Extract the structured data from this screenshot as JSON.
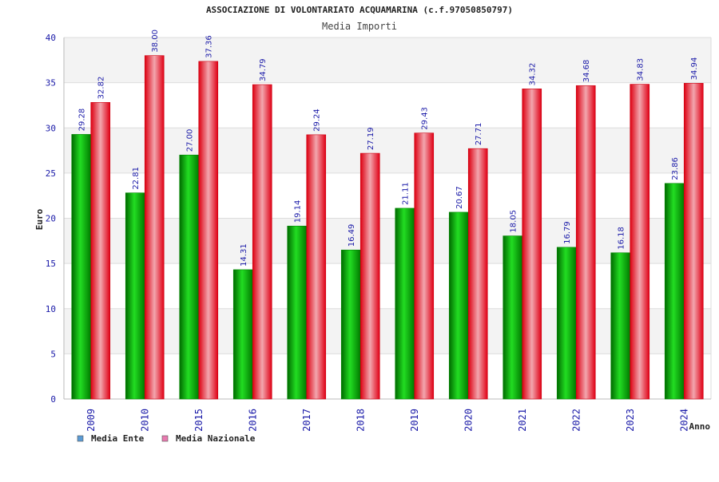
{
  "chart_data": {
    "type": "bar",
    "title": "ASSOCIAZIONE DI VOLONTARIATO ACQUAMARINA (c.f.97050850797)",
    "subtitle": "Media Importi",
    "xlabel": "Anno",
    "ylabel": "Euro",
    "ylim": [
      0,
      40
    ],
    "yticks": [
      "0",
      "5",
      "10",
      "15",
      "20",
      "25",
      "30",
      "35",
      "40"
    ],
    "grid": true,
    "legend_position": "bottom-left",
    "categories": [
      "2009",
      "2010",
      "2015",
      "2016",
      "2017",
      "2018",
      "2019",
      "2020",
      "2021",
      "2022",
      "2023",
      "2024"
    ],
    "series": [
      {
        "name": "Media Ente",
        "color": "#00bb00",
        "legend_color": "#5b9bd5",
        "values": [
          29.28,
          22.81,
          27.0,
          14.31,
          19.14,
          16.49,
          21.11,
          20.67,
          18.05,
          16.79,
          16.18,
          23.86
        ],
        "labels": [
          "29.28",
          "22.81",
          "27.00",
          "14.31",
          "19.14",
          "16.49",
          "21.11",
          "20.67",
          "18.05",
          "16.79",
          "16.18",
          "23.86"
        ]
      },
      {
        "name": "Media Nazionale",
        "color": "#ee1122",
        "legend_color": "#e87ab0",
        "values": [
          32.82,
          38.0,
          37.36,
          34.79,
          29.24,
          27.19,
          29.43,
          27.71,
          34.32,
          34.68,
          34.83,
          34.94
        ],
        "labels": [
          "32.82",
          "38.00",
          "37.36",
          "34.79",
          "29.24",
          "27.19",
          "29.43",
          "27.71",
          "34.32",
          "34.68",
          "34.83",
          "34.94"
        ]
      }
    ]
  }
}
